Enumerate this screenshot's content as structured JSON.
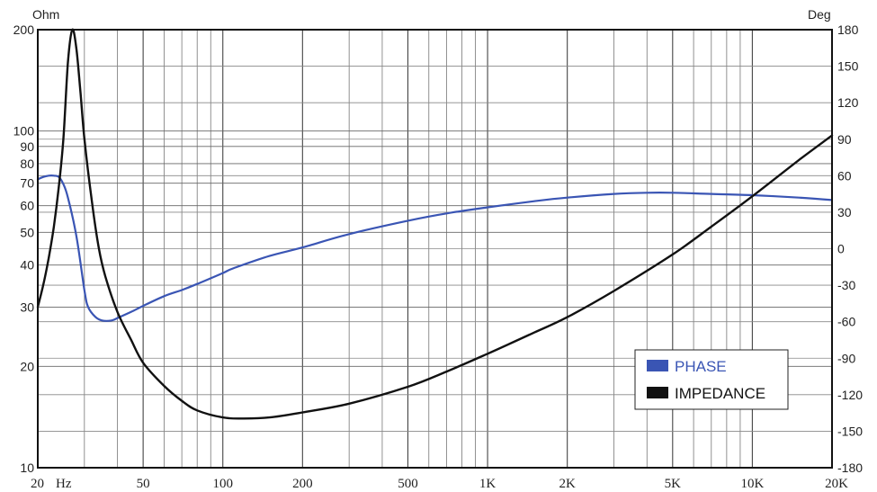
{
  "chart_data": {
    "type": "line",
    "title": "",
    "x_scale": "log",
    "xlim": [
      20,
      20000
    ],
    "x_ticks": [
      {
        "value": 20,
        "label": "20",
        "color": "#8a3f52"
      },
      {
        "value": 50,
        "label": "50",
        "color": "#222222"
      },
      {
        "value": 100,
        "label": "100",
        "color": "#8a3f52"
      },
      {
        "value": 200,
        "label": "200",
        "color": "#8a3f52"
      },
      {
        "value": 500,
        "label": "500",
        "color": "#8a3f52"
      },
      {
        "value": 1000,
        "label": "1K",
        "color": "#222222"
      },
      {
        "value": 2000,
        "label": "2K",
        "color": "#222222"
      },
      {
        "value": 5000,
        "label": "5K",
        "color": "#222222"
      },
      {
        "value": 10000,
        "label": "10K",
        "color": "#8a3f52"
      },
      {
        "value": 20000,
        "label": "20K",
        "color": "#222222"
      }
    ],
    "x_unit_label": "Hz",
    "y_left": {
      "unit": "Ohm",
      "scale": "log",
      "range": [
        10,
        200
      ],
      "ticks": [
        {
          "value": 200,
          "label": "200"
        },
        {
          "value": 100,
          "label": "100"
        },
        {
          "value": 90,
          "label": "90"
        },
        {
          "value": 80,
          "label": "80"
        },
        {
          "value": 70,
          "label": "70"
        },
        {
          "value": 60,
          "label": "60"
        },
        {
          "value": 50,
          "label": "50"
        },
        {
          "value": 40,
          "label": "40"
        },
        {
          "value": 30,
          "label": "30"
        },
        {
          "value": 20,
          "label": "20"
        },
        {
          "value": 10,
          "label": "10"
        }
      ]
    },
    "y_right": {
      "unit": "Deg",
      "scale": "linear",
      "range": [
        -180,
        180
      ],
      "ticks": [
        "180",
        "150",
        "120",
        "90",
        "60",
        "30",
        "0",
        "-30",
        "-60",
        "-90",
        "-120",
        "-150",
        "-180"
      ]
    },
    "grid": true,
    "legend_position": "bottom-right",
    "series": [
      {
        "name": "PHASE",
        "color": "#3a55b4",
        "axis": "right",
        "x": [
          20,
          21,
          22,
          23,
          24,
          25,
          26,
          28,
          30,
          31,
          33,
          35,
          38,
          40,
          45,
          50,
          60,
          70,
          80,
          100,
          110,
          150,
          200,
          300,
          500,
          700,
          1000,
          1500,
          2000,
          3000,
          4000,
          5000,
          7000,
          10000,
          15000,
          20000
        ],
        "y": [
          57,
          59,
          60,
          60,
          59,
          53,
          42,
          10,
          -34,
          -48,
          -56,
          -59,
          -59,
          -57,
          -52,
          -47,
          -39,
          -34,
          -29,
          -20,
          -16,
          -6,
          1,
          12,
          23,
          29,
          34,
          39,
          42,
          45,
          46,
          46,
          45,
          44,
          42,
          40
        ]
      },
      {
        "name": "IMPEDANCE",
        "color": "#111111",
        "axis": "left",
        "x": [
          20,
          21,
          22,
          23,
          24,
          25,
          26,
          27,
          28,
          29,
          30,
          32,
          34,
          36,
          40,
          45,
          50,
          60,
          70,
          80,
          100,
          120,
          150,
          200,
          300,
          500,
          700,
          1000,
          1500,
          2000,
          3000,
          5000,
          7000,
          10000,
          15000,
          20000
        ],
        "y": [
          30,
          35,
          42,
          52,
          68,
          95,
          160,
          200,
          175,
          130,
          95,
          62,
          45,
          37,
          29,
          24,
          20.5,
          17.5,
          15.8,
          14.8,
          14.1,
          14,
          14.1,
          14.6,
          15.5,
          17.4,
          19.3,
          21.8,
          25.2,
          28,
          33.5,
          43,
          52,
          64,
          82,
          97
        ]
      }
    ]
  }
}
